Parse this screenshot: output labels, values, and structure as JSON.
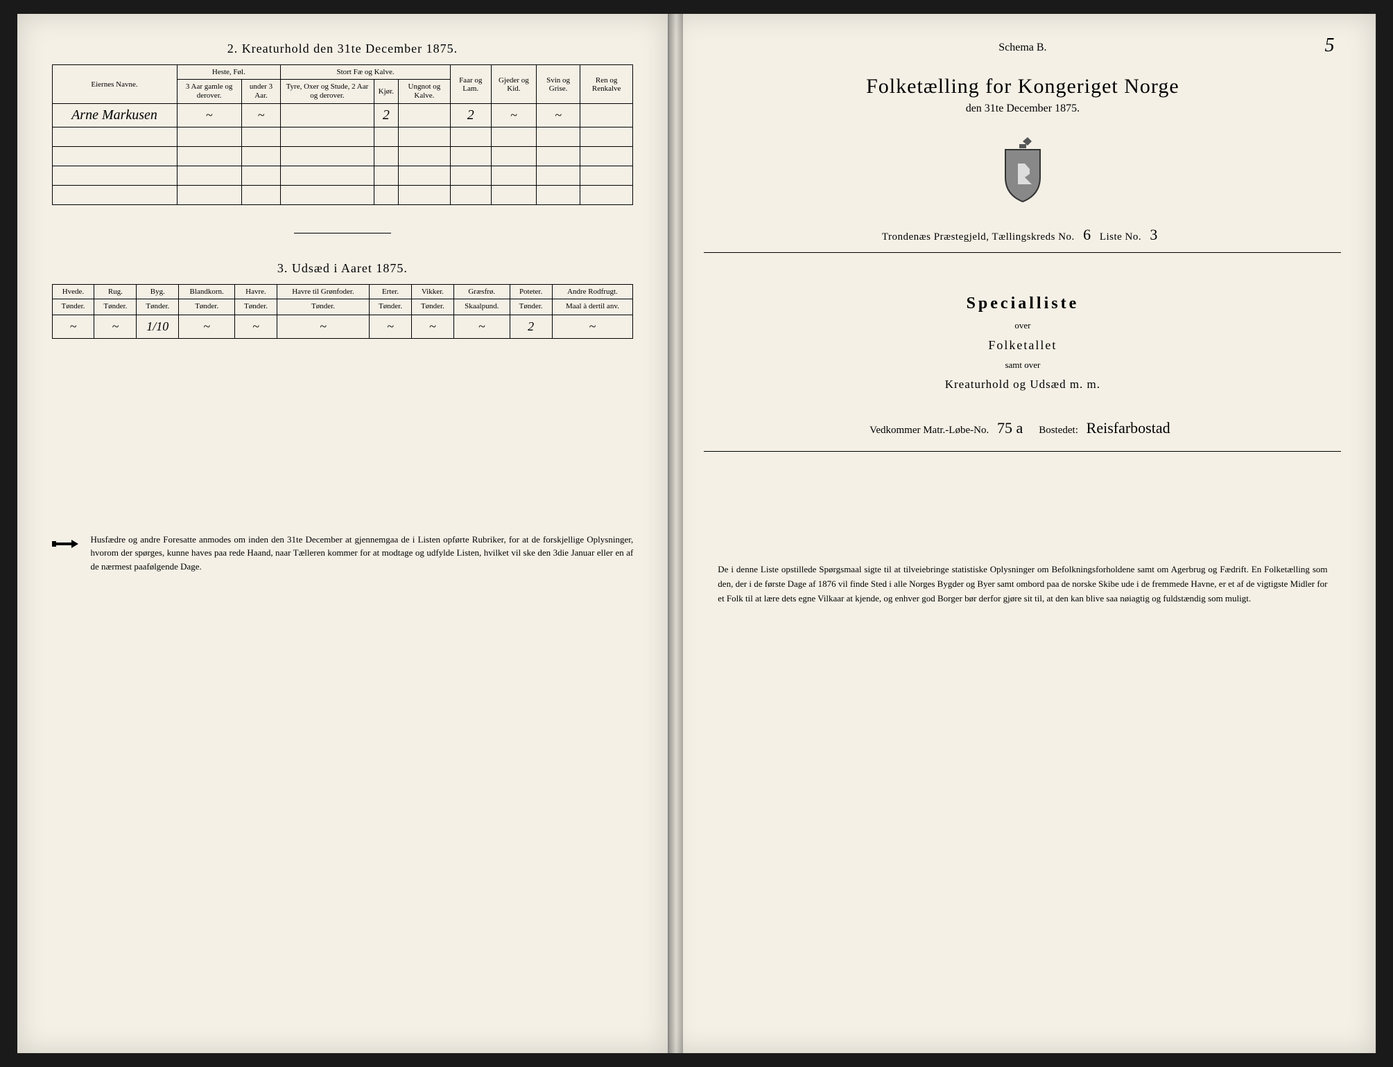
{
  "left": {
    "section2_title": "2.  Kreaturhold den 31te December 1875.",
    "table2": {
      "headers": {
        "eier": "Eiernes Navne.",
        "heste": "Heste, Føl.",
        "stort": "Stort Fæ og Kalve.",
        "faar": "Faar og Lam.",
        "gjeder": "Gjeder og Kid.",
        "svin": "Svin og Grise.",
        "ren": "Ren og Renkalve",
        "heste_a": "3 Aar gamle og derover.",
        "heste_b": "under 3 Aar.",
        "stort_a": "Tyre, Oxer og Stude, 2 Aar og derover.",
        "stort_b": "Kjør.",
        "stort_c": "Ungnot og Kalve."
      },
      "row": {
        "name": "Arne Markusen",
        "heste_a": "~",
        "heste_b": "~",
        "stort_a": "",
        "stort_b": "2",
        "stort_c": "",
        "faar": "2",
        "gjeder": "~",
        "svin": "~",
        "ren": ""
      }
    },
    "section3_title": "3.  Udsæd i Aaret 1875.",
    "table3": {
      "headers": [
        "Hvede.",
        "Rug.",
        "Byg.",
        "Blandkorn.",
        "Havre.",
        "Havre til Grønfoder.",
        "Erter.",
        "Vikker.",
        "Græsfrø.",
        "Poteter.",
        "Andre Rodfrugt."
      ],
      "subheaders": [
        "Tønder.",
        "Tønder.",
        "Tønder.",
        "Tønder.",
        "Tønder.",
        "Tønder.",
        "Tønder.",
        "Tønder.",
        "Skaalpund.",
        "Tønder.",
        "Maal à dertil anv."
      ],
      "row": [
        "~",
        "~",
        "1/10",
        "~",
        "~",
        "~",
        "~",
        "~",
        "~",
        "2",
        "~"
      ]
    },
    "notice_text": "Husfædre og andre Foresatte anmodes om inden den 31te December at gjennemgaa de i Listen opførte Rubriker, for at de forskjellige Oplysninger, hvorom der spørges, kunne haves paa rede Haand, naar Tælleren kommer for at modtage og udfylde Listen, hvilket vil ske den 3die Januar eller en af de nærmest paafølgende Dage."
  },
  "right": {
    "schema": "Schema B.",
    "page_num": "5",
    "title": "Folketælling for Kongeriget Norge",
    "subtitle": "den 31te December 1875.",
    "prest_label": "Trondenæs Præstegjeld,  Tællingskreds No.",
    "kreds_no": "6",
    "liste_label": "Liste No.",
    "liste_no": "3",
    "special": "Specialliste",
    "over": "over",
    "folketallet": "Folketallet",
    "samt": "samt over",
    "kreatur": "Kreaturhold og Udsæd m. m.",
    "vedk_label": "Vedkommer Matr.-Løbe-No.",
    "matr_no": "75 a",
    "bosted_label": "Bostedet:",
    "bosted": "Reisfarbostad",
    "bottom_para": "De i denne Liste opstillede Spørgsmaal sigte til at tilveiebringe statistiske Oplysninger om Befolkningsforholdene samt om Agerbrug og Fædrift.  En Folketælling som den, der i de første Dage af 1876 vil finde Sted i alle Norges Bygder og Byer samt ombord paa de norske Skibe ude i de fremmede Havne, er et af de vigtigste Midler for et Folk til at lære dets egne Vilkaar at kjende, og enhver god Borger bør derfor gjøre sit til, at den kan blive saa nøiagtig og fuldstændig som muligt."
  },
  "colors": {
    "paper": "#f4f0e6",
    "ink": "#000000"
  }
}
